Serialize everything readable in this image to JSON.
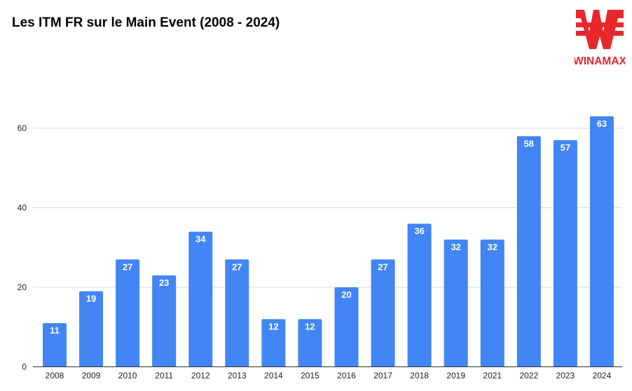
{
  "chart_data": {
    "type": "bar",
    "title": "Les ITM FR sur le Main Event (2008 - 2024)",
    "categories": [
      "2008",
      "2009",
      "2010",
      "2011",
      "2012",
      "2013",
      "2014",
      "2015",
      "2016",
      "2017",
      "2018",
      "2019",
      "2021",
      "2022",
      "2023",
      "2024"
    ],
    "values": [
      11,
      19,
      27,
      23,
      34,
      27,
      12,
      12,
      20,
      27,
      36,
      32,
      32,
      58,
      57,
      63
    ],
    "ylim": [
      0,
      63
    ],
    "yticks": [
      0,
      20,
      40,
      60
    ],
    "grid": true,
    "bar_color": "#4285f4",
    "data_labels": true
  },
  "logo": {
    "text": "WINAMAX",
    "color": "#e8272c"
  }
}
